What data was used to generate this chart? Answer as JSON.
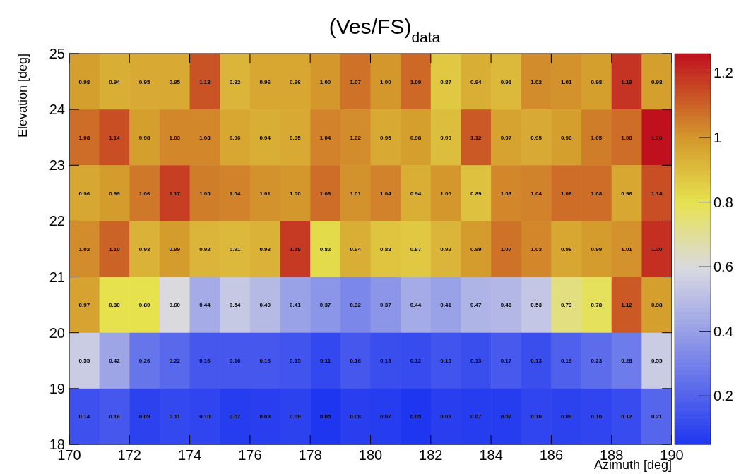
{
  "chart_data": {
    "type": "heatmap",
    "title": "(Ves/FS)$_{data}$",
    "xlabel": "Azimuth [deg]",
    "ylabel": "Elevation [deg]",
    "xlim": [
      170,
      190
    ],
    "xticks": [
      170,
      172,
      174,
      176,
      178,
      180,
      182,
      184,
      186,
      188,
      190
    ],
    "ylim": [
      18,
      25
    ],
    "yticks": [
      18,
      19,
      20,
      21,
      22,
      23,
      24,
      25
    ],
    "clim": [
      0.05,
      1.26
    ],
    "cticks": [
      0.2,
      0.4,
      0.6,
      0.8,
      1,
      1.2
    ],
    "cells": [
      [
        0.98,
        0.94,
        0.95,
        0.95,
        1.13,
        0.92,
        0.96,
        0.96,
        1.0,
        1.07,
        1.0,
        1.09,
        0.87,
        0.94,
        0.91,
        1.02,
        1.01,
        0.98,
        1.19,
        0.98
      ],
      [
        1.08,
        1.14,
        0.98,
        1.03,
        1.03,
        0.96,
        0.94,
        0.95,
        1.04,
        1.02,
        0.95,
        0.98,
        0.9,
        1.12,
        0.97,
        0.95,
        0.98,
        1.05,
        1.08,
        1.26
      ],
      [
        0.96,
        0.99,
        1.06,
        1.17,
        1.05,
        1.04,
        1.01,
        1.0,
        1.08,
        1.01,
        1.04,
        0.94,
        1.0,
        0.89,
        1.03,
        1.04,
        1.08,
        1.08,
        0.96,
        1.14
      ],
      [
        1.02,
        1.1,
        0.93,
        0.99,
        0.92,
        0.91,
        0.93,
        1.18,
        0.82,
        0.94,
        0.88,
        0.87,
        0.92,
        0.99,
        1.07,
        1.03,
        0.96,
        0.99,
        1.01,
        1.2
      ],
      [
        0.97,
        0.8,
        0.8,
        0.6,
        0.44,
        0.54,
        0.49,
        0.41,
        0.37,
        0.32,
        0.37,
        0.44,
        0.41,
        0.47,
        0.48,
        0.53,
        0.73,
        0.78,
        1.12,
        0.98
      ],
      [
        0.55,
        0.42,
        0.26,
        0.22,
        0.16,
        0.16,
        0.16,
        0.15,
        0.11,
        0.16,
        0.13,
        0.12,
        0.15,
        0.13,
        0.17,
        0.13,
        0.19,
        0.23,
        0.28,
        0.55
      ],
      [
        0.14,
        0.16,
        0.09,
        0.11,
        0.1,
        0.07,
        0.08,
        0.09,
        0.05,
        0.08,
        0.07,
        0.05,
        0.08,
        0.07,
        0.07,
        0.1,
        0.09,
        0.1,
        0.12,
        0.21
      ]
    ],
    "cell_labels": [
      [
        "0.98",
        "0.94",
        "0.95",
        "0.95",
        "1.13",
        "0.92",
        "0.96",
        "0.96",
        "1.00",
        "1.07",
        "1.00",
        "1.09",
        "0.87",
        "0.94",
        "0.91",
        "1.02",
        "1.01",
        "0.98",
        "1.19",
        "0.98"
      ],
      [
        "1.08",
        "1.14",
        "0.98",
        "1.03",
        "1.03",
        "0.96",
        "0.94",
        "0.95",
        "1.04",
        "1.02",
        "0.95",
        "0.98",
        "0.90",
        "1.12",
        "0.97",
        "0.95",
        "0.98",
        "1.05",
        "1.08",
        "1.26"
      ],
      [
        "0.96",
        "0.99",
        "1.06",
        "1.17",
        "1.05",
        "1.04",
        "1.01",
        "1.00",
        "1.08",
        "1.01",
        "1.04",
        "0.94",
        "1.00",
        "0.89",
        "1.03",
        "1.04",
        "1.08",
        "1.08",
        "0.96",
        "1.14"
      ],
      [
        "1.02",
        "1.10",
        "0.93",
        "0.99",
        "0.92",
        "0.91",
        "0.93",
        "1.18",
        "0.82",
        "0.94",
        "0.88",
        "0.87",
        "0.92",
        "0.99",
        "1.07",
        "1.03",
        "0.96",
        "0.99",
        "1.01",
        "1.20"
      ],
      [
        "0.97",
        "0.80",
        "0.80",
        "0.60",
        "0.44",
        "0.54",
        "0.49",
        "0.41",
        "0.37",
        "0.32",
        "0.37",
        "0.44",
        "0.41",
        "0.47",
        "0.48",
        "0.53",
        "0.73",
        "0.78",
        "1.12",
        "0.98"
      ],
      [
        "0.55",
        "0.42",
        "0.26",
        "0.22",
        "0.16",
        "0.16",
        "0.16",
        "0.15",
        "0.11",
        "0.16",
        "0.13",
        "0.12",
        "0.15",
        "0.13",
        "0.17",
        "0.13",
        "0.19",
        "0.23",
        "0.28",
        "0.55"
      ],
      [
        "0.14",
        "0.16",
        "0.09",
        "0.11",
        "0.10",
        "0.07",
        "0.08",
        "0.09",
        "0.05",
        "0.08",
        "0.07",
        "0.05",
        "0.08",
        "0.07",
        "0.07",
        "0.10",
        "0.09",
        "0.10",
        "0.12",
        "0.21"
      ]
    ]
  }
}
